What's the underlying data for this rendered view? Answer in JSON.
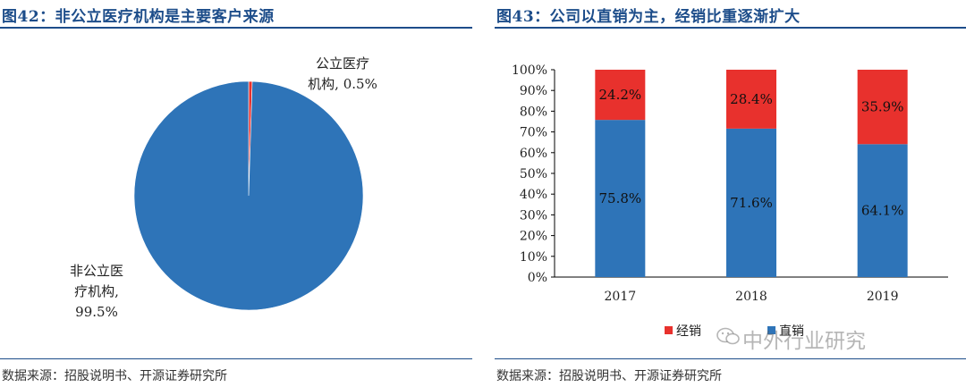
{
  "watermark": "中外行业研究",
  "colors": {
    "title": "#1d4d8a",
    "blue": "#2e74b8",
    "red": "#e8312d"
  },
  "chart_data": [
    {
      "type": "pie",
      "title": "图42：非公立医疗机构是主要客户来源",
      "source": "数据来源：招股说明书、开源证券研究所",
      "slices": [
        {
          "name": "非公立医疗机构",
          "value": 99.5,
          "label_lines": [
            "非公立医",
            "疗机构,",
            "99.5%"
          ],
          "color": "#2e74b8"
        },
        {
          "name": "公立医疗机构",
          "value": 0.5,
          "label_lines": [
            "公立医疗",
            "机构, 0.5%"
          ],
          "color": "#e8312d"
        }
      ]
    },
    {
      "type": "bar",
      "stacked": true,
      "title": "图43：公司以直销为主，经销比重逐渐扩大",
      "source": "数据来源：招股说明书、开源证券研究所",
      "categories": [
        "2017",
        "2018",
        "2019"
      ],
      "ylim": [
        0,
        100
      ],
      "yticks": [
        "0%",
        "10%",
        "20%",
        "30%",
        "40%",
        "50%",
        "60%",
        "70%",
        "80%",
        "90%",
        "100%"
      ],
      "series": [
        {
          "name": "直销",
          "values": [
            75.8,
            71.6,
            64.1
          ],
          "labels": [
            "75.8%",
            "71.6%",
            "64.1%"
          ],
          "color": "#2e74b8"
        },
        {
          "name": "经销",
          "values": [
            24.2,
            28.4,
            35.9
          ],
          "labels": [
            "24.2%",
            "28.4%",
            "35.9%"
          ],
          "color": "#e8312d"
        }
      ],
      "legend": [
        "经销",
        "直销"
      ],
      "legend_position": "bottom"
    }
  ]
}
